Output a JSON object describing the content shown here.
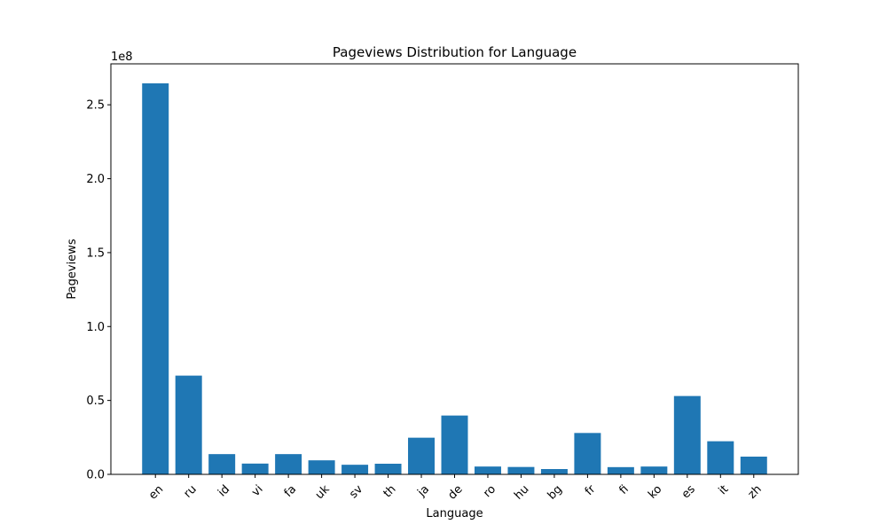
{
  "chart_data": {
    "type": "bar",
    "title": "Pageviews Distribution for Language",
    "xlabel": "Language",
    "ylabel": "Pageviews",
    "y_offset_label": "1e8",
    "categories": [
      "en",
      "ru",
      "id",
      "vi",
      "fa",
      "uk",
      "sv",
      "th",
      "ja",
      "de",
      "ro",
      "hu",
      "bg",
      "fr",
      "fi",
      "ko",
      "es",
      "it",
      "zh"
    ],
    "values": [
      264500000,
      66800000,
      13700000,
      7300000,
      13700000,
      9500000,
      6500000,
      7200000,
      24800000,
      39800000,
      5300000,
      5000000,
      3600000,
      28000000,
      4900000,
      5300000,
      53000000,
      22400000,
      12000000
    ],
    "ylim": [
      0,
      277700000
    ],
    "yticks": [
      0,
      50000000,
      100000000,
      150000000,
      200000000,
      250000000
    ],
    "ytick_labels": [
      "0.0",
      "0.5",
      "1.0",
      "1.5",
      "2.0",
      "2.5"
    ],
    "bar_color": "#1f77b4",
    "grid": false,
    "legend": "none",
    "xtick_rotation": 45
  }
}
